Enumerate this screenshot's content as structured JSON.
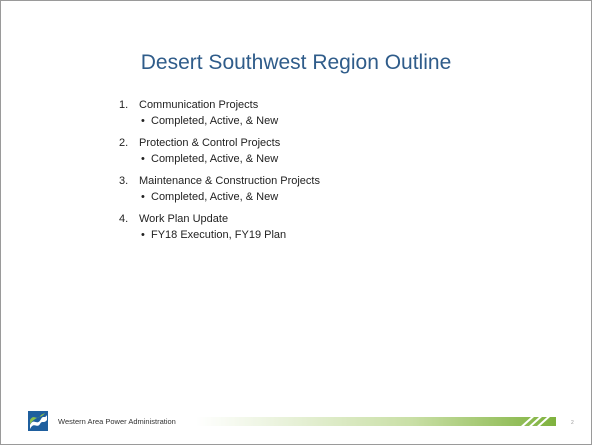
{
  "title": "Desert Southwest Region Outline",
  "items": [
    {
      "number": "1.",
      "text": "Communication Projects",
      "sub": [
        "Completed, Active, & New"
      ]
    },
    {
      "number": "2.",
      "text": "Protection & Control Projects",
      "sub": [
        "Completed, Active, & New"
      ]
    },
    {
      "number": "3.",
      "text": "Maintenance & Construction Projects",
      "sub": [
        "Completed, Active, & New"
      ]
    },
    {
      "number": "4.",
      "text": "Work Plan Update",
      "sub": [
        "FY18 Execution, FY19 Plan"
      ]
    }
  ],
  "footer": {
    "organization": "Western Area Power Administration",
    "page_number": "2"
  }
}
